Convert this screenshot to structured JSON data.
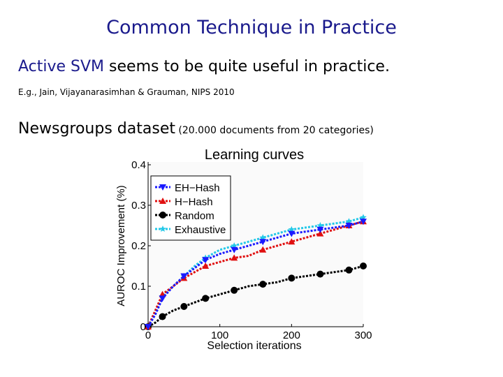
{
  "slide": {
    "title": "Common Technique in Practice",
    "line1_highlight": "Active SVM",
    "line1_rest": " seems to be quite useful in practice.",
    "citation": "E.g., Jain, Vijayanarasimhan & Grauman, NIPS 2010",
    "dataset_label": "Newsgroups dataset",
    "dataset_detail": " (20.000  documents from 20 categories)"
  },
  "chart_data": {
    "type": "line",
    "title": "Learning curves",
    "xlabel": "Selection iterations",
    "ylabel": "AUROC Improvement (%)",
    "xlim": [
      0,
      300
    ],
    "ylim": [
      0,
      0.4
    ],
    "xticks": [
      "0",
      "100",
      "200",
      "300"
    ],
    "yticks": [
      "0",
      "0.1",
      "0.2",
      "0.3",
      "0.4"
    ],
    "legend_position": "top-left",
    "grid": false,
    "series": [
      {
        "name": "EH−Hash",
        "color": "#1a1aff",
        "marker": "triangle-down",
        "x": [
          0,
          10,
          20,
          35,
          50,
          65,
          80,
          100,
          120,
          140,
          160,
          180,
          200,
          220,
          240,
          260,
          280,
          300
        ],
        "y": [
          0.0,
          0.03,
          0.07,
          0.1,
          0.125,
          0.145,
          0.165,
          0.18,
          0.19,
          0.2,
          0.21,
          0.22,
          0.23,
          0.235,
          0.24,
          0.245,
          0.25,
          0.26
        ]
      },
      {
        "name": "H−Hash",
        "color": "#e01010",
        "marker": "triangle-up",
        "x": [
          0,
          10,
          20,
          35,
          50,
          65,
          80,
          100,
          120,
          140,
          160,
          180,
          200,
          220,
          240,
          260,
          280,
          300
        ],
        "y": [
          0.0,
          0.04,
          0.08,
          0.1,
          0.12,
          0.135,
          0.15,
          0.16,
          0.17,
          0.175,
          0.19,
          0.2,
          0.21,
          0.22,
          0.23,
          0.24,
          0.25,
          0.26
        ]
      },
      {
        "name": "Random",
        "color": "#000000",
        "marker": "circle",
        "x": [
          0,
          10,
          20,
          35,
          50,
          65,
          80,
          100,
          120,
          140,
          160,
          180,
          200,
          220,
          240,
          260,
          280,
          300
        ],
        "y": [
          0.0,
          0.01,
          0.025,
          0.04,
          0.05,
          0.06,
          0.07,
          0.08,
          0.09,
          0.1,
          0.105,
          0.11,
          0.12,
          0.125,
          0.13,
          0.135,
          0.14,
          0.15
        ]
      },
      {
        "name": "Exhaustive",
        "color": "#22c8e8",
        "marker": "star",
        "x": [
          0,
          10,
          20,
          35,
          50,
          65,
          80,
          100,
          120,
          140,
          160,
          180,
          200,
          220,
          240,
          260,
          280,
          300
        ],
        "y": [
          0.0,
          0.035,
          0.075,
          0.1,
          0.125,
          0.15,
          0.17,
          0.19,
          0.2,
          0.21,
          0.22,
          0.23,
          0.24,
          0.245,
          0.25,
          0.255,
          0.26,
          0.27
        ]
      }
    ]
  }
}
